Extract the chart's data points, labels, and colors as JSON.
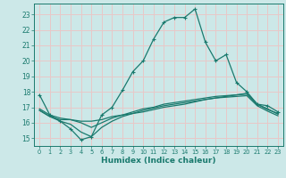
{
  "xlabel": "Humidex (Indice chaleur)",
  "bg_color": "#cce8e8",
  "grid_color": "#e8c8c8",
  "line_color": "#1a7a6e",
  "xlim": [
    -0.5,
    23.5
  ],
  "ylim": [
    14.5,
    23.7
  ],
  "yticks": [
    15,
    16,
    17,
    18,
    19,
    20,
    21,
    22,
    23
  ],
  "xticks": [
    0,
    1,
    2,
    3,
    4,
    5,
    6,
    7,
    8,
    9,
    10,
    11,
    12,
    13,
    14,
    15,
    16,
    17,
    18,
    19,
    20,
    21,
    22,
    23
  ],
  "line1_x": [
    0,
    1,
    2,
    3,
    4,
    5,
    6,
    7,
    8,
    9,
    10,
    11,
    12,
    13,
    14,
    15,
    16,
    17,
    18,
    19,
    20,
    21,
    22,
    23
  ],
  "line1_y": [
    17.8,
    16.5,
    16.1,
    15.6,
    14.9,
    15.1,
    16.5,
    17.0,
    18.1,
    19.3,
    20.0,
    21.4,
    22.5,
    22.8,
    22.8,
    23.35,
    21.2,
    20.0,
    20.4,
    18.6,
    18.0,
    17.2,
    17.1,
    16.7
  ],
  "line2_x": [
    0,
    1,
    2,
    3,
    4,
    5,
    6,
    7,
    8,
    9,
    10,
    11,
    12,
    13,
    14,
    15,
    16,
    17,
    18,
    19,
    20,
    21,
    22,
    23
  ],
  "line2_y": [
    16.8,
    16.4,
    16.2,
    16.2,
    16.1,
    16.1,
    16.2,
    16.4,
    16.5,
    16.6,
    16.7,
    16.85,
    17.0,
    17.1,
    17.2,
    17.35,
    17.5,
    17.6,
    17.7,
    17.8,
    17.9,
    17.2,
    16.85,
    16.6
  ],
  "line3_x": [
    0,
    1,
    2,
    3,
    4,
    5,
    6,
    7,
    8,
    9,
    10,
    11,
    12,
    13,
    14,
    15,
    16,
    17,
    18,
    19,
    20,
    21,
    22,
    23
  ],
  "line3_y": [
    16.9,
    16.5,
    16.3,
    16.2,
    16.0,
    15.7,
    16.0,
    16.3,
    16.5,
    16.7,
    16.9,
    17.0,
    17.2,
    17.3,
    17.4,
    17.5,
    17.6,
    17.7,
    17.75,
    17.8,
    17.85,
    17.2,
    16.9,
    16.55
  ],
  "line4_x": [
    0,
    1,
    2,
    3,
    4,
    5,
    6,
    7,
    8,
    9,
    10,
    11,
    12,
    13,
    14,
    15,
    16,
    17,
    18,
    19,
    20,
    21,
    22,
    23
  ],
  "line4_y": [
    16.8,
    16.4,
    16.1,
    15.9,
    15.4,
    15.1,
    15.7,
    16.1,
    16.4,
    16.6,
    16.8,
    16.95,
    17.1,
    17.2,
    17.3,
    17.4,
    17.5,
    17.6,
    17.65,
    17.7,
    17.75,
    17.1,
    16.75,
    16.45
  ]
}
